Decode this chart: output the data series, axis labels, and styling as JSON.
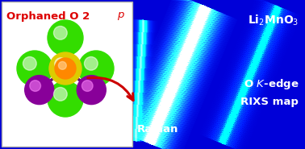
{
  "bg_color": "#0000cc",
  "box_color": "#ffffff",
  "title_text": "Li₂MnO₃",
  "label_raman": "Raman",
  "label_o_kedge": "O Κ-edge",
  "label_rixs": "RIXS map",
  "orphaned_text": "Orphaned O 2",
  "orphaned_p": "p",
  "o_color": "#33dd00",
  "li_color": "#880099",
  "mn_outer_color": "#ddcc00",
  "mn_inner_color": "#ff8800",
  "bond_color": "#cc0000",
  "arrow_color": "#cc0000",
  "text_color_red": "#dd0000",
  "text_color_white": "#ffffff"
}
